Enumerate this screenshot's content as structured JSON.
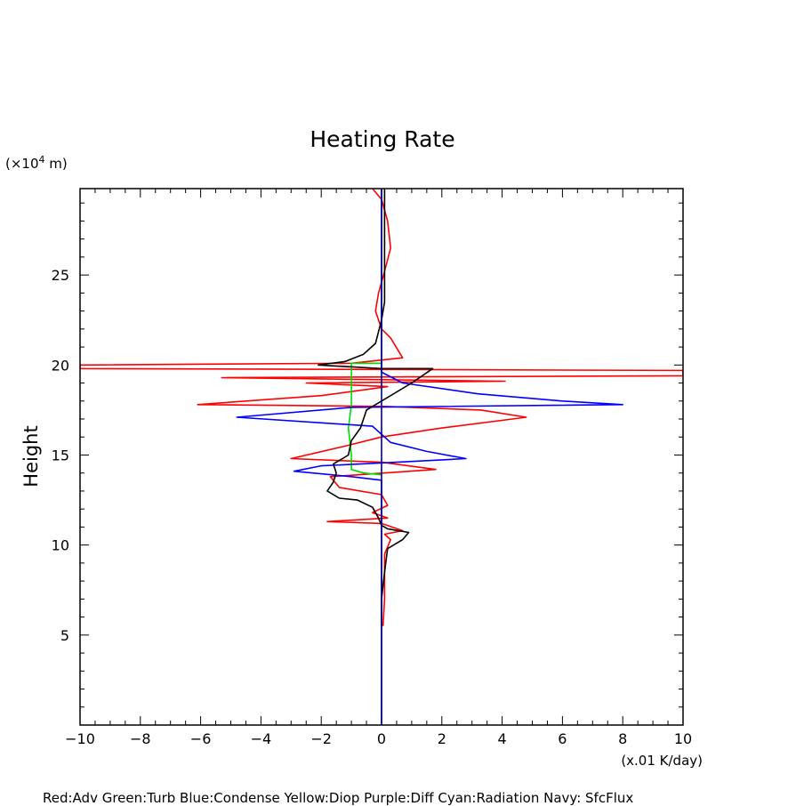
{
  "chart_data": {
    "type": "line",
    "title": "Heating Rate",
    "ylabel": "Height",
    "yunit_text": "(×10",
    "yunit_exp": "4",
    "yunit_tail": " m)",
    "xunit": "(x.01 K/day)",
    "xlim": [
      -10,
      10
    ],
    "ylim": [
      0,
      29.8
    ],
    "xticks": [
      -10,
      -8,
      -6,
      -4,
      -2,
      0,
      2,
      4,
      6,
      8,
      10
    ],
    "yticks": [
      5,
      10,
      15,
      20,
      25
    ],
    "series": [
      {
        "color": "#ff0000",
        "points": [
          [
            -0.3,
            29.8
          ],
          [
            0,
            29.2
          ],
          [
            0.2,
            28
          ],
          [
            0.3,
            26.5
          ],
          [
            0.1,
            25.2
          ],
          [
            -0.1,
            24
          ],
          [
            -0.2,
            23
          ],
          [
            0,
            22
          ],
          [
            0.3,
            21.5
          ],
          [
            0.7,
            20.4
          ],
          [
            -1,
            20.1
          ],
          [
            -10,
            20
          ],
          [
            -10,
            19.8
          ],
          [
            10,
            19.7
          ],
          [
            10,
            19.4
          ],
          [
            -5.3,
            19.3
          ],
          [
            4.1,
            19.1
          ],
          [
            -2.5,
            19
          ],
          [
            0.2,
            18.8
          ],
          [
            -2,
            18.3
          ],
          [
            -6.1,
            17.8
          ],
          [
            0.1,
            17.7
          ],
          [
            3.3,
            17.5
          ],
          [
            4.8,
            17.1
          ],
          [
            2,
            16.5
          ],
          [
            0,
            16
          ],
          [
            -1.2,
            15.5
          ],
          [
            -3,
            14.8
          ],
          [
            0,
            14.6
          ],
          [
            1.8,
            14.2
          ],
          [
            -1.7,
            13.8
          ],
          [
            -1.4,
            13.2
          ],
          [
            0,
            12.8
          ],
          [
            0.2,
            12.2
          ],
          [
            -0.3,
            11.8
          ],
          [
            0.2,
            11.5
          ],
          [
            -1.8,
            11.3
          ],
          [
            0,
            11.2
          ],
          [
            0.7,
            10.8
          ],
          [
            0.1,
            10.6
          ],
          [
            0.3,
            10.3
          ],
          [
            0.1,
            9.5
          ],
          [
            0.1,
            7
          ],
          [
            0.05,
            5.5
          ]
        ]
      },
      {
        "color": "#00dd00",
        "points": [
          [
            0,
            20.1
          ],
          [
            -1,
            20.1
          ],
          [
            -1,
            19.5
          ],
          [
            -1,
            17.8
          ],
          [
            -1.1,
            16.5
          ],
          [
            -1,
            15
          ],
          [
            -1,
            14.2
          ],
          [
            -0.6,
            14
          ],
          [
            0,
            13.9
          ]
        ]
      },
      {
        "color": "#0000ff",
        "points": [
          [
            0,
            29.8
          ],
          [
            0,
            20.1
          ],
          [
            0,
            19.6
          ],
          [
            0.7,
            19
          ],
          [
            3.2,
            18.4
          ],
          [
            6,
            18
          ],
          [
            8,
            17.8
          ],
          [
            -1,
            17.65
          ],
          [
            -4.8,
            17.1
          ],
          [
            -0.3,
            16.6
          ],
          [
            0.3,
            15.7
          ],
          [
            1.5,
            15.2
          ],
          [
            2.8,
            14.8
          ],
          [
            0.5,
            14.6
          ],
          [
            -2,
            14.4
          ],
          [
            -2.9,
            14.1
          ],
          [
            -1,
            13.8
          ],
          [
            0,
            13.6
          ],
          [
            0,
            0
          ]
        ]
      },
      {
        "color": "#000000",
        "points": [
          [
            0.1,
            29.8
          ],
          [
            0.1,
            28
          ],
          [
            0.1,
            26
          ],
          [
            0.1,
            24.5
          ],
          [
            0.1,
            23.5
          ],
          [
            0,
            22.5
          ],
          [
            -0.2,
            21.2
          ],
          [
            -0.6,
            20.6
          ],
          [
            -1.2,
            20.2
          ],
          [
            -2.1,
            20
          ],
          [
            0,
            19.8
          ],
          [
            1.7,
            19.8
          ],
          [
            1,
            19
          ],
          [
            0,
            18
          ],
          [
            -0.5,
            17.5
          ],
          [
            -0.7,
            16.5
          ],
          [
            -1,
            15.8
          ],
          [
            -1.1,
            15
          ],
          [
            -1.6,
            14.5
          ],
          [
            -1.5,
            14
          ],
          [
            -1.6,
            13.5
          ],
          [
            -1.8,
            13
          ],
          [
            -1.4,
            12.6
          ],
          [
            -0.8,
            12.5
          ],
          [
            -0.3,
            12.1
          ],
          [
            -0.1,
            11.5
          ],
          [
            0,
            11.1
          ],
          [
            0.2,
            10.9
          ],
          [
            0.9,
            10.7
          ],
          [
            0.7,
            10.3
          ],
          [
            0.2,
            9.8
          ],
          [
            0.1,
            8.5
          ],
          [
            0,
            7
          ],
          [
            0,
            5.5
          ]
        ]
      },
      {
        "color": "#000080",
        "points": [
          [
            0,
            29.8
          ],
          [
            0,
            0
          ]
        ]
      }
    ],
    "legend_text": "Red:Adv  Green:Turb  Blue:Condense  Yellow:Diop  Purple:Diff  Cyan:Radiation  Navy: SfcFlux"
  }
}
